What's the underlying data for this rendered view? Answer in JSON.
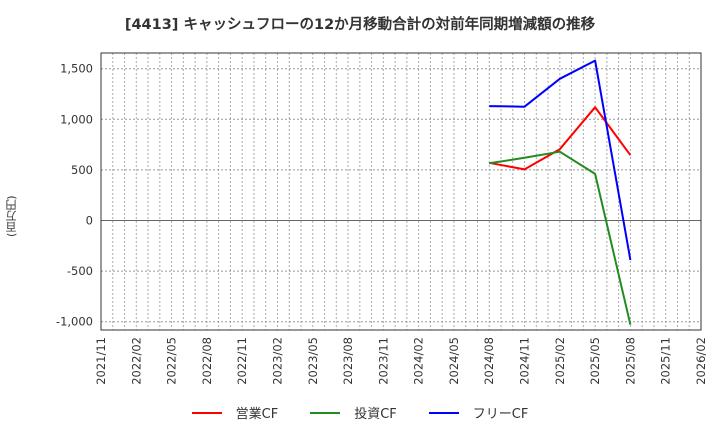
{
  "title": "[4413]  キャッシュフローの12か月移動合計の対前年同期増減額の推移",
  "chart_data": {
    "type": "line",
    "title": "[4413]  キャッシュフローの12か月移動合計の対前年同期増減額の推移",
    "xlabel": "",
    "ylabel": "(百万円)",
    "ylim": [
      -1080,
      1650
    ],
    "xlim": [
      "2021/11",
      "2026/02"
    ],
    "yticks": [
      1500,
      1000,
      500,
      0,
      -500,
      -1000
    ],
    "ytick_labels": [
      "1,500",
      "1,000",
      "500",
      "0",
      "-500",
      "-1,000"
    ],
    "xtick_labels": [
      "2021/11",
      "2022/02",
      "2022/05",
      "2022/08",
      "2022/11",
      "2023/02",
      "2023/05",
      "2023/08",
      "2023/11",
      "2024/02",
      "2024/05",
      "2024/08",
      "2024/11",
      "2025/02",
      "2025/05",
      "2025/08",
      "2025/11",
      "2026/02"
    ],
    "grid": true,
    "legend_position": "bottom",
    "x": [
      "2024/08",
      "2024/11",
      "2025/02",
      "2025/05",
      "2025/08"
    ],
    "series": [
      {
        "name": "営業CF",
        "color": "#ff0000",
        "values": [
          570,
          505,
          705,
          1120,
          645
        ]
      },
      {
        "name": "投資CF",
        "color": "#228b22",
        "values": [
          565,
          620,
          680,
          460,
          -1030
        ]
      },
      {
        "name": "フリーCF",
        "color": "#0000ff",
        "values": [
          1130,
          1125,
          1400,
          1580,
          -390
        ]
      }
    ]
  },
  "legend": {
    "items": [
      {
        "label": "営業CF",
        "color": "#ff0000"
      },
      {
        "label": "投資CF",
        "color": "#228b22"
      },
      {
        "label": "フリーCF",
        "color": "#0000ff"
      }
    ]
  }
}
